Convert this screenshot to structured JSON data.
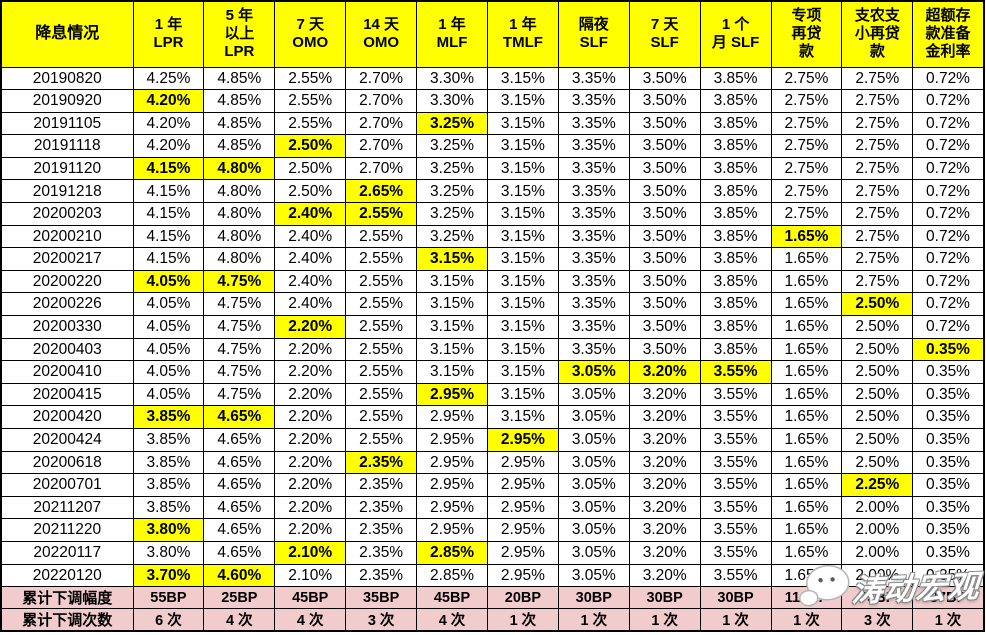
{
  "table": {
    "columns": [
      "降息情况",
      "1 年\nLPR",
      "5 年\n以上\nLPR",
      "7 天\nOMO",
      "14 天\nOMO",
      "1 年\nMLF",
      "1 年\nTMLF",
      "隔夜\nSLF",
      "7 天\nSLF",
      "1 个\n月 SLF",
      "专项\n再贷\n款",
      "支农支\n小再贷\n款",
      "超额存\n款准备\n金利率"
    ],
    "rows": [
      {
        "date": "20190820",
        "values": [
          "4.25%",
          "4.85%",
          "2.55%",
          "2.70%",
          "3.30%",
          "3.15%",
          "3.35%",
          "3.50%",
          "3.85%",
          "2.75%",
          "2.75%",
          "0.72%"
        ],
        "highlights": []
      },
      {
        "date": "20190920",
        "values": [
          "4.20%",
          "4.85%",
          "2.55%",
          "2.70%",
          "3.30%",
          "3.15%",
          "3.35%",
          "3.50%",
          "3.85%",
          "2.75%",
          "2.75%",
          "0.72%"
        ],
        "highlights": [
          0
        ]
      },
      {
        "date": "20191105",
        "values": [
          "4.20%",
          "4.85%",
          "2.55%",
          "2.70%",
          "3.25%",
          "3.15%",
          "3.35%",
          "3.50%",
          "3.85%",
          "2.75%",
          "2.75%",
          "0.72%"
        ],
        "highlights": [
          4
        ]
      },
      {
        "date": "20191118",
        "values": [
          "4.20%",
          "4.85%",
          "2.50%",
          "2.70%",
          "3.25%",
          "3.15%",
          "3.35%",
          "3.50%",
          "3.85%",
          "2.75%",
          "2.75%",
          "0.72%"
        ],
        "highlights": [
          2
        ]
      },
      {
        "date": "20191120",
        "values": [
          "4.15%",
          "4.80%",
          "2.50%",
          "2.70%",
          "3.25%",
          "3.15%",
          "3.35%",
          "3.50%",
          "3.85%",
          "2.75%",
          "2.75%",
          "0.72%"
        ],
        "highlights": [
          0,
          1
        ]
      },
      {
        "date": "20191218",
        "values": [
          "4.15%",
          "4.80%",
          "2.50%",
          "2.65%",
          "3.25%",
          "3.15%",
          "3.35%",
          "3.50%",
          "3.85%",
          "2.75%",
          "2.75%",
          "0.72%"
        ],
        "highlights": [
          3
        ]
      },
      {
        "date": "20200203",
        "values": [
          "4.15%",
          "4.80%",
          "2.40%",
          "2.55%",
          "3.25%",
          "3.15%",
          "3.35%",
          "3.50%",
          "3.85%",
          "2.75%",
          "2.75%",
          "0.72%"
        ],
        "highlights": [
          2,
          3
        ]
      },
      {
        "date": "20200210",
        "values": [
          "4.15%",
          "4.80%",
          "2.40%",
          "2.55%",
          "3.25%",
          "3.15%",
          "3.35%",
          "3.50%",
          "3.85%",
          "1.65%",
          "2.75%",
          "0.72%"
        ],
        "highlights": [
          9
        ]
      },
      {
        "date": "20200217",
        "values": [
          "4.15%",
          "4.80%",
          "2.40%",
          "2.55%",
          "3.15%",
          "3.15%",
          "3.35%",
          "3.50%",
          "3.85%",
          "1.65%",
          "2.75%",
          "0.72%"
        ],
        "highlights": [
          4
        ]
      },
      {
        "date": "20200220",
        "values": [
          "4.05%",
          "4.75%",
          "2.40%",
          "2.55%",
          "3.15%",
          "3.15%",
          "3.35%",
          "3.50%",
          "3.85%",
          "1.65%",
          "2.75%",
          "0.72%"
        ],
        "highlights": [
          0,
          1
        ]
      },
      {
        "date": "20200226",
        "values": [
          "4.05%",
          "4.75%",
          "2.40%",
          "2.55%",
          "3.15%",
          "3.15%",
          "3.35%",
          "3.50%",
          "3.85%",
          "1.65%",
          "2.50%",
          "0.72%"
        ],
        "highlights": [
          10
        ]
      },
      {
        "date": "20200330",
        "values": [
          "4.05%",
          "4.75%",
          "2.20%",
          "2.55%",
          "3.15%",
          "3.15%",
          "3.35%",
          "3.50%",
          "3.85%",
          "1.65%",
          "2.50%",
          "0.72%"
        ],
        "highlights": [
          2
        ]
      },
      {
        "date": "20200403",
        "values": [
          "4.05%",
          "4.75%",
          "2.20%",
          "2.55%",
          "3.15%",
          "3.15%",
          "3.35%",
          "3.50%",
          "3.85%",
          "1.65%",
          "2.50%",
          "0.35%"
        ],
        "highlights": [
          11
        ]
      },
      {
        "date": "20200410",
        "values": [
          "4.05%",
          "4.75%",
          "2.20%",
          "2.55%",
          "3.15%",
          "3.15%",
          "3.05%",
          "3.20%",
          "3.55%",
          "1.65%",
          "2.50%",
          "0.35%"
        ],
        "highlights": [
          6,
          7,
          8
        ]
      },
      {
        "date": "20200415",
        "values": [
          "4.05%",
          "4.75%",
          "2.20%",
          "2.55%",
          "2.95%",
          "3.15%",
          "3.05%",
          "3.20%",
          "3.55%",
          "1.65%",
          "2.50%",
          "0.35%"
        ],
        "highlights": [
          4
        ]
      },
      {
        "date": "20200420",
        "values": [
          "3.85%",
          "4.65%",
          "2.20%",
          "2.55%",
          "2.95%",
          "3.15%",
          "3.05%",
          "3.20%",
          "3.55%",
          "1.65%",
          "2.50%",
          "0.35%"
        ],
        "highlights": [
          0,
          1
        ]
      },
      {
        "date": "20200424",
        "values": [
          "3.85%",
          "4.65%",
          "2.20%",
          "2.55%",
          "2.95%",
          "2.95%",
          "3.05%",
          "3.20%",
          "3.55%",
          "1.65%",
          "2.50%",
          "0.35%"
        ],
        "highlights": [
          5
        ]
      },
      {
        "date": "20200618",
        "values": [
          "3.85%",
          "4.65%",
          "2.20%",
          "2.35%",
          "2.95%",
          "2.95%",
          "3.05%",
          "3.20%",
          "3.55%",
          "1.65%",
          "2.50%",
          "0.35%"
        ],
        "highlights": [
          3
        ]
      },
      {
        "date": "20200701",
        "values": [
          "3.85%",
          "4.65%",
          "2.20%",
          "2.35%",
          "2.95%",
          "2.95%",
          "3.05%",
          "3.20%",
          "3.55%",
          "1.65%",
          "2.25%",
          "0.35%"
        ],
        "highlights": [
          10
        ]
      },
      {
        "date": "20211207",
        "values": [
          "3.85%",
          "4.65%",
          "2.20%",
          "2.35%",
          "2.95%",
          "2.95%",
          "3.05%",
          "3.20%",
          "3.55%",
          "1.65%",
          "2.00%",
          "0.35%"
        ],
        "highlights": []
      },
      {
        "date": "20211220",
        "values": [
          "3.80%",
          "4.65%",
          "2.20%",
          "2.35%",
          "2.95%",
          "2.95%",
          "3.05%",
          "3.20%",
          "3.55%",
          "1.65%",
          "2.00%",
          "0.35%"
        ],
        "highlights": [
          0
        ]
      },
      {
        "date": "20220117",
        "values": [
          "3.80%",
          "4.65%",
          "2.10%",
          "2.35%",
          "2.85%",
          "2.95%",
          "3.05%",
          "3.20%",
          "3.55%",
          "1.65%",
          "2.00%",
          "0.35%"
        ],
        "highlights": [
          2,
          4
        ]
      },
      {
        "date": "20220120",
        "values": [
          "3.70%",
          "4.60%",
          "2.10%",
          "2.35%",
          "2.85%",
          "2.95%",
          "3.05%",
          "3.20%",
          "3.55%",
          "1.65%",
          "2.00%",
          "0.35%"
        ],
        "highlights": [
          0,
          1
        ]
      }
    ],
    "footer": [
      {
        "label": "累计下调幅度",
        "values": [
          "55BP",
          "25BP",
          "45BP",
          "35BP",
          "45BP",
          "20BP",
          "30BP",
          "30BP",
          "30BP",
          "110BP",
          "75BP",
          "37BP"
        ]
      },
      {
        "label": "累计下调次数",
        "values": [
          "6 次",
          "4 次",
          "4 次",
          "3 次",
          "4 次",
          "1 次",
          "1 次",
          "1 次",
          "1 次",
          "1 次",
          "3 次",
          "1 次"
        ]
      }
    ]
  },
  "watermark": {
    "icon": "wechat-icon",
    "text": "涛动宏观"
  },
  "colors": {
    "header_bg": "#FFFF00",
    "highlight_bg": "#FFFF00",
    "footer_bg": "#F2CCCC",
    "border": "#000000",
    "text": "#000000"
  }
}
